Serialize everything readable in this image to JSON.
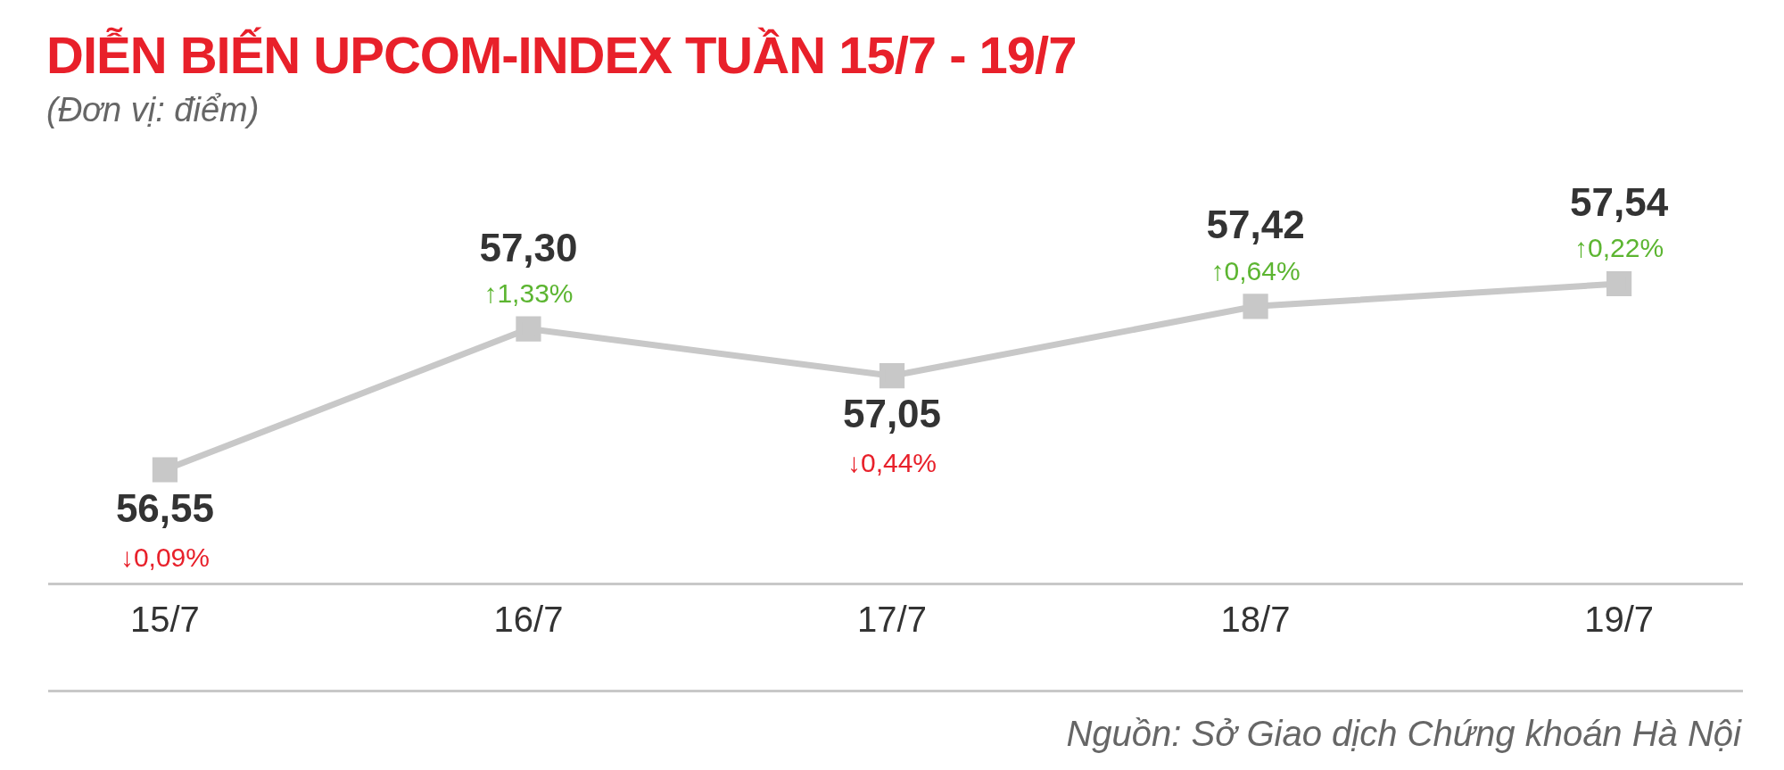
{
  "chart_data": {
    "type": "line",
    "title": "DIỄN BIẾN UPCOM-INDEX TUẦN 15/7 - 19/7",
    "subtitle": "(Đơn vị: điểm)",
    "categories": [
      "15/7",
      "16/7",
      "17/7",
      "18/7",
      "19/7"
    ],
    "series": [
      {
        "color": "#c8c8c8",
        "values": [
          56.55,
          57.3,
          57.05,
          57.42,
          57.54
        ],
        "value_labels": [
          "56,55",
          "57,30",
          "57,05",
          "57,42",
          "57,54"
        ]
      }
    ],
    "tick_labels": "x",
    "grid": false,
    "legend": false,
    "marker": "square",
    "line_style": "solid",
    "annotations": [
      {
        "text": "↓0,09%",
        "x": "15/7",
        "y": 56.55
      },
      {
        "text": "↑1,33%",
        "x": "16/7",
        "y": 57.3
      },
      {
        "text": "↓0,44%",
        "x": "17/7",
        "y": 57.05
      },
      {
        "text": "↑0,64%",
        "x": "18/7",
        "y": 57.42
      },
      {
        "text": "↑0,22%",
        "x": "19/7",
        "y": 57.54
      },
      "Nguồn: Sở Giao dịch Chứng khoán Hà Nội"
    ]
  }
}
